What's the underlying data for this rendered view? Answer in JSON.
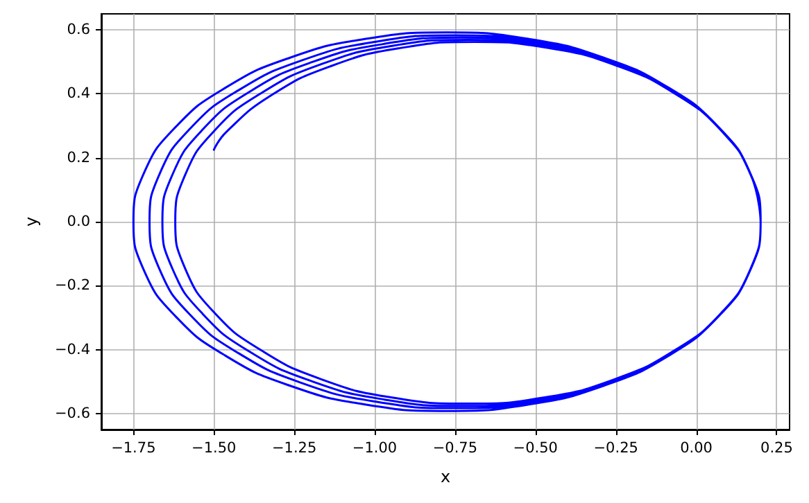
{
  "chart_data": {
    "type": "line",
    "xlabel": "x",
    "ylabel": "y",
    "x": [
      0.2,
      0.167,
      0.069,
      -0.086,
      -0.288,
      -0.523,
      -0.775,
      -1.027,
      -1.263,
      -1.464,
      -1.619,
      -1.717,
      -1.75,
      -1.717,
      -1.619,
      -1.464,
      -1.263,
      -1.027,
      -0.775,
      -0.523,
      -0.288,
      -0.086,
      0.069,
      0.167,
      0.2,
      0.168,
      0.073,
      -0.078,
      -0.275,
      -0.504,
      -0.75,
      -0.996,
      -1.225,
      -1.422,
      -1.573,
      -1.668,
      -1.7,
      -1.668,
      -1.573,
      -1.422,
      -1.225,
      -0.996,
      -0.75,
      -0.504,
      -0.275,
      -0.078,
      0.073,
      0.168,
      0.2,
      0.168,
      0.075,
      -0.072,
      -0.265,
      -0.489,
      -0.73,
      -0.971,
      -1.195,
      -1.388,
      -1.535,
      -1.628,
      -1.66,
      -1.628,
      -1.535,
      -1.388,
      -1.195,
      -0.971,
      -0.73,
      -0.489,
      -0.265,
      -0.072,
      0.075,
      0.168,
      0.2,
      0.169,
      0.078,
      -0.067,
      -0.255,
      -0.474,
      -0.71,
      -0.946,
      -1.165,
      -1.353,
      -1.498,
      -1.589,
      -1.62,
      -1.589,
      -1.498,
      -1.353,
      -1.165,
      -0.946,
      -0.71,
      -0.474,
      -0.255,
      -0.067,
      0.078,
      0.169,
      0.2,
      0.17,
      0.081,
      -0.061,
      -0.245,
      -0.459,
      -0.69,
      -0.921,
      -1.135,
      -1.319,
      -1.461,
      -1.5
    ],
    "series": [
      {
        "color": "#0000ff",
        "values": [
          0,
          0.153,
          0.296,
          0.419,
          0.513,
          0.572,
          0.592,
          0.572,
          0.513,
          0.419,
          0.296,
          0.153,
          0,
          -0.153,
          -0.296,
          -0.419,
          -0.513,
          -0.572,
          -0.592,
          -0.572,
          -0.513,
          -0.419,
          -0.296,
          -0.153,
          0,
          0.151,
          0.292,
          0.412,
          0.505,
          0.563,
          0.583,
          0.563,
          0.505,
          0.412,
          0.292,
          0.151,
          0,
          -0.151,
          -0.292,
          -0.412,
          -0.505,
          -0.563,
          -0.583,
          -0.563,
          -0.505,
          -0.412,
          -0.292,
          -0.151,
          0,
          0.149,
          0.288,
          0.407,
          0.499,
          0.556,
          0.576,
          0.556,
          0.499,
          0.407,
          0.288,
          0.149,
          0,
          -0.149,
          -0.288,
          -0.407,
          -0.499,
          -0.556,
          -0.576,
          -0.556,
          -0.499,
          -0.407,
          -0.288,
          -0.149,
          0,
          0.147,
          0.285,
          0.402,
          0.493,
          0.55,
          0.569,
          0.55,
          0.493,
          0.402,
          0.285,
          0.147,
          0,
          -0.147,
          -0.285,
          -0.402,
          -0.493,
          -0.55,
          -0.569,
          -0.55,
          -0.493,
          -0.402,
          -0.285,
          -0.147,
          0,
          0.146,
          0.281,
          0.397,
          0.487,
          0.543,
          0.562,
          0.543,
          0.487,
          0.397,
          0.281,
          0.225
        ]
      }
    ],
    "xlim": [
      -1.85,
      0.29
    ],
    "ylim": [
      -0.65,
      0.65
    ],
    "xticks": [
      {
        "value": -1.75,
        "label": "−1.75"
      },
      {
        "value": -1.5,
        "label": "−1.50"
      },
      {
        "value": -1.25,
        "label": "−1.25"
      },
      {
        "value": -1,
        "label": "−1.00"
      },
      {
        "value": -0.75,
        "label": "−0.75"
      },
      {
        "value": -0.5,
        "label": "−0.50"
      },
      {
        "value": -0.25,
        "label": "−0.25"
      },
      {
        "value": 0,
        "label": "0.00"
      },
      {
        "value": 0.25,
        "label": "0.25"
      }
    ],
    "yticks": [
      {
        "value": -0.6,
        "label": "−0.6"
      },
      {
        "value": -0.4,
        "label": "−0.4"
      },
      {
        "value": -0.2,
        "label": "−0.2"
      },
      {
        "value": 0,
        "label": "0.0"
      },
      0.2,
      0.4,
      0.6
    ],
    "grid": true,
    "marker": "none",
    "line_style": "solid"
  }
}
